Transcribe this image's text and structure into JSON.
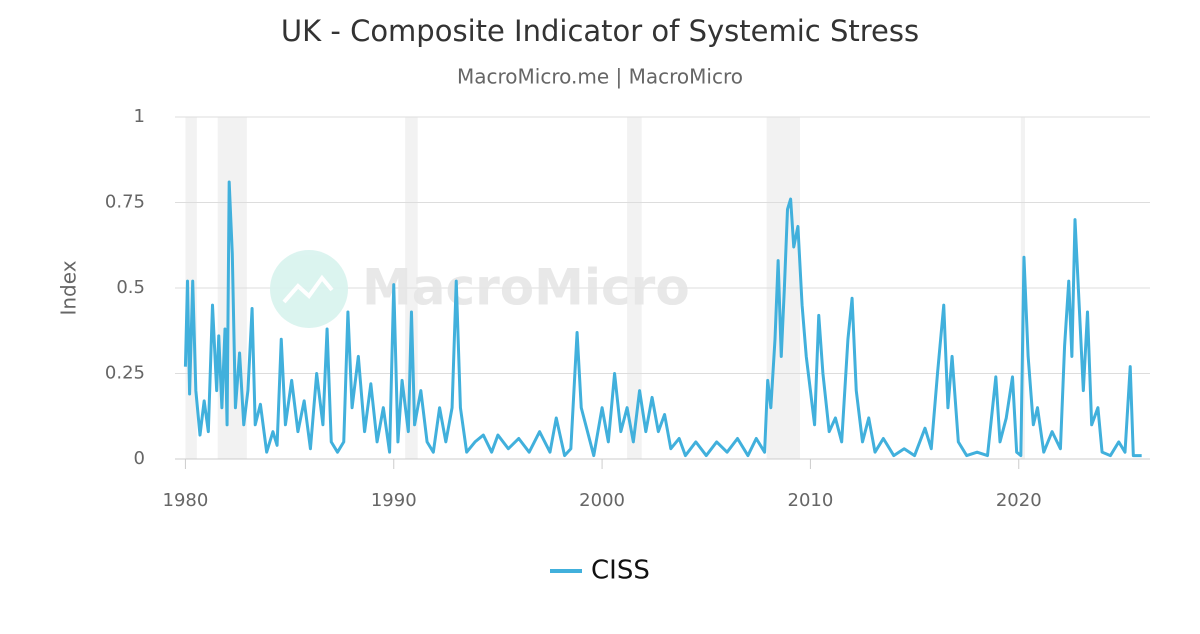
{
  "chart_data": {
    "type": "line",
    "title": "UK - Composite Indicator of Systemic Stress",
    "subtitle": "MacroMicro.me | MacroMicro",
    "watermark": "MacroMicro",
    "y_label": "Index",
    "xlim": [
      1979.5,
      2026.3
    ],
    "xticks": [
      1980,
      1990,
      2000,
      2010,
      2020
    ],
    "ylim": [
      0,
      1
    ],
    "yticks": [
      0,
      0.25,
      0.5,
      0.75,
      1
    ],
    "grid": true,
    "legend": "bottom",
    "shaded_periods": [
      [
        1980.0,
        1980.55
      ],
      [
        1981.55,
        1982.95
      ],
      [
        1990.55,
        1991.15
      ],
      [
        2001.2,
        2001.9
      ],
      [
        2007.9,
        2009.5
      ],
      [
        2020.1,
        2020.3
      ]
    ],
    "shade_color": "#f2f2f2",
    "x": [
      1980.0,
      1980.1,
      1980.2,
      1980.35,
      1980.5,
      1980.7,
      1980.9,
      1981.1,
      1981.3,
      1981.5,
      1981.6,
      1981.75,
      1981.9,
      1982.0,
      1982.1,
      1982.25,
      1982.4,
      1982.6,
      1982.8,
      1983.0,
      1983.2,
      1983.35,
      1983.6,
      1983.9,
      1984.2,
      1984.4,
      1984.6,
      1984.8,
      1985.1,
      1985.4,
      1985.7,
      1986.0,
      1986.3,
      1986.6,
      1986.8,
      1987.0,
      1987.3,
      1987.6,
      1987.8,
      1988.0,
      1988.3,
      1988.6,
      1988.9,
      1989.2,
      1989.5,
      1989.8,
      1990.0,
      1990.2,
      1990.4,
      1990.7,
      1990.85,
      1991.0,
      1991.3,
      1991.6,
      1991.9,
      1992.2,
      1992.5,
      1992.8,
      1993.0,
      1993.2,
      1993.5,
      1993.9,
      1994.3,
      1994.7,
      1995.0,
      1995.5,
      1996.0,
      1996.5,
      1997.0,
      1997.5,
      1997.8,
      1998.2,
      1998.5,
      1998.8,
      1999.0,
      1999.3,
      1999.6,
      2000.0,
      2000.3,
      2000.6,
      2000.9,
      2001.2,
      2001.5,
      2001.8,
      2002.1,
      2002.4,
      2002.7,
      2003.0,
      2003.3,
      2003.7,
      2004.0,
      2004.5,
      2005.0,
      2005.5,
      2006.0,
      2006.5,
      2007.0,
      2007.4,
      2007.8,
      2007.95,
      2008.1,
      2008.3,
      2008.45,
      2008.6,
      2008.75,
      2008.9,
      2009.05,
      2009.2,
      2009.4,
      2009.6,
      2009.8,
      2010.0,
      2010.2,
      2010.4,
      2010.6,
      2010.9,
      2011.2,
      2011.5,
      2011.8,
      2012.0,
      2012.2,
      2012.5,
      2012.8,
      2013.1,
      2013.5,
      2014.0,
      2014.5,
      2015.0,
      2015.5,
      2015.8,
      2016.1,
      2016.4,
      2016.6,
      2016.8,
      2017.1,
      2017.5,
      2018.0,
      2018.5,
      2018.9,
      2019.1,
      2019.4,
      2019.7,
      2019.9,
      2020.1,
      2020.25,
      2020.45,
      2020.7,
      2020.9,
      2021.2,
      2021.6,
      2022.0,
      2022.2,
      2022.4,
      2022.55,
      2022.7,
      2022.9,
      2023.1,
      2023.3,
      2023.5,
      2023.8,
      2024.0,
      2024.4,
      2024.8,
      2025.1,
      2025.35,
      2025.5,
      2025.9
    ],
    "series": [
      {
        "name": "CISS",
        "color": "#41b0dc",
        "values": [
          0.27,
          0.52,
          0.19,
          0.52,
          0.2,
          0.07,
          0.17,
          0.08,
          0.45,
          0.2,
          0.36,
          0.15,
          0.38,
          0.1,
          0.81,
          0.6,
          0.15,
          0.31,
          0.1,
          0.2,
          0.44,
          0.1,
          0.16,
          0.02,
          0.08,
          0.04,
          0.35,
          0.1,
          0.23,
          0.08,
          0.17,
          0.03,
          0.25,
          0.1,
          0.38,
          0.05,
          0.02,
          0.05,
          0.43,
          0.15,
          0.3,
          0.08,
          0.22,
          0.05,
          0.15,
          0.02,
          0.51,
          0.05,
          0.23,
          0.08,
          0.43,
          0.1,
          0.2,
          0.05,
          0.02,
          0.15,
          0.05,
          0.15,
          0.52,
          0.15,
          0.02,
          0.05,
          0.07,
          0.02,
          0.07,
          0.03,
          0.06,
          0.02,
          0.08,
          0.02,
          0.12,
          0.01,
          0.03,
          0.37,
          0.15,
          0.08,
          0.01,
          0.15,
          0.05,
          0.25,
          0.08,
          0.15,
          0.05,
          0.2,
          0.08,
          0.18,
          0.08,
          0.13,
          0.03,
          0.06,
          0.01,
          0.05,
          0.01,
          0.05,
          0.02,
          0.06,
          0.01,
          0.06,
          0.02,
          0.23,
          0.15,
          0.35,
          0.58,
          0.3,
          0.5,
          0.73,
          0.76,
          0.62,
          0.68,
          0.45,
          0.3,
          0.2,
          0.1,
          0.42,
          0.25,
          0.08,
          0.12,
          0.05,
          0.35,
          0.47,
          0.2,
          0.05,
          0.12,
          0.02,
          0.06,
          0.01,
          0.03,
          0.01,
          0.09,
          0.03,
          0.25,
          0.45,
          0.15,
          0.3,
          0.05,
          0.01,
          0.02,
          0.01,
          0.24,
          0.05,
          0.12,
          0.24,
          0.02,
          0.01,
          0.59,
          0.3,
          0.1,
          0.15,
          0.02,
          0.08,
          0.03,
          0.33,
          0.52,
          0.3,
          0.7,
          0.45,
          0.2,
          0.43,
          0.1,
          0.15,
          0.02,
          0.01,
          0.05,
          0.02,
          0.27,
          0.01,
          0.01
        ]
      }
    ]
  }
}
